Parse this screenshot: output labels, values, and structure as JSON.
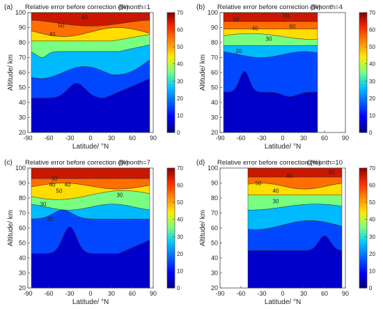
{
  "chart_data": [
    {
      "type": "heatmap",
      "panel_label": "(a)",
      "title": "Relative error before correction (%)",
      "annotation": "@month=1",
      "xlabel": "Latitude/ °N",
      "ylabel": "Altitude/ km",
      "xlim": [
        -90,
        90
      ],
      "ylim": [
        20,
        100
      ],
      "x_ticks": [
        "-90",
        "-60",
        "-30",
        "0",
        "30",
        "60",
        "90"
      ],
      "y_ticks": [
        "20",
        "30",
        "40",
        "50",
        "60",
        "70",
        "80",
        "90",
        "100"
      ],
      "data_extent": [
        -85,
        85
      ],
      "contour_labels": [
        {
          "text": "50",
          "x": -42,
          "y": 91.5
        },
        {
          "text": "40",
          "x": -55,
          "y": 85.5
        },
        {
          "text": "60",
          "x": -8,
          "y": 97
        }
      ],
      "colorbar": {
        "min": 0,
        "max": 70,
        "ticks": [
          "0",
          "10",
          "20",
          "30",
          "40",
          "50",
          "60",
          "70"
        ]
      }
    },
    {
      "type": "heatmap",
      "panel_label": "(b)",
      "title": "Relative error before correction (%)",
      "annotation": "@month=4",
      "xlabel": "Latitude/ °N",
      "ylabel": "Altitude/ km",
      "xlim": [
        -90,
        90
      ],
      "ylim": [
        20,
        100
      ],
      "x_ticks": [
        "-90",
        "-60",
        "-30",
        "0",
        "30",
        "60",
        "90"
      ],
      "y_ticks": [
        "20",
        "30",
        "40",
        "50",
        "60",
        "70",
        "80",
        "90",
        "100"
      ],
      "data_extent": [
        -85,
        50
      ],
      "contour_labels": [
        {
          "text": "60",
          "x": 5,
          "y": 98
        },
        {
          "text": "50",
          "x": -67,
          "y": 95.5
        },
        {
          "text": "40",
          "x": -40,
          "y": 89.5
        },
        {
          "text": "30",
          "x": -20,
          "y": 82.5
        },
        {
          "text": "20",
          "x": -63,
          "y": 74.5
        },
        {
          "text": "60",
          "x": 14,
          "y": 91
        }
      ],
      "colorbar": {
        "min": 0,
        "max": 70,
        "ticks": [
          "0",
          "10",
          "20",
          "30",
          "40",
          "50",
          "60",
          "70"
        ]
      }
    },
    {
      "type": "heatmap",
      "panel_label": "(c)",
      "title": "Relative error before correction (%)",
      "annotation": "@month=7",
      "xlabel": "Latitude/ °N",
      "ylabel": "Altitude/ km",
      "xlim": [
        -90,
        90
      ],
      "ylim": [
        20,
        100
      ],
      "x_ticks": [
        "-90",
        "-60",
        "-30",
        "0",
        "30",
        "60",
        "90"
      ],
      "y_ticks": [
        "20",
        "30",
        "40",
        "50",
        "60",
        "70",
        "80",
        "90",
        "100"
      ],
      "data_extent": [
        -85,
        85
      ],
      "contour_labels": [
        {
          "text": "30",
          "x": -52,
          "y": 93
        },
        {
          "text": "40",
          "x": -55,
          "y": 89
        },
        {
          "text": "50",
          "x": -45,
          "y": 85
        },
        {
          "text": "40",
          "x": -33,
          "y": 89
        },
        {
          "text": "30",
          "x": -68,
          "y": 76
        },
        {
          "text": "20",
          "x": -58,
          "y": 66
        },
        {
          "text": "30",
          "x": 42,
          "y": 82
        }
      ],
      "colorbar": {
        "min": 0,
        "max": 70,
        "ticks": [
          "0",
          "10",
          "20",
          "30",
          "40",
          "50",
          "60",
          "70"
        ]
      }
    },
    {
      "type": "heatmap",
      "panel_label": "(d)",
      "title": "Relative error before correction (%)",
      "annotation": "@month=10",
      "xlabel": "Latitude/ °N",
      "ylabel": "Altitude/ km",
      "xlim": [
        -90,
        90
      ],
      "ylim": [
        20,
        100
      ],
      "x_ticks": [
        "-90",
        "-60",
        "-30",
        "0",
        "30",
        "60",
        "90"
      ],
      "y_ticks": [
        "20",
        "30",
        "40",
        "50",
        "60",
        "70",
        "80",
        "90",
        "100"
      ],
      "data_extent": [
        -50,
        85
      ],
      "contour_labels": [
        {
          "text": "50",
          "x": 70,
          "y": 97.5
        },
        {
          "text": "50",
          "x": -35,
          "y": 90
        },
        {
          "text": "40",
          "x": -10,
          "y": 85
        },
        {
          "text": "30",
          "x": -10,
          "y": 78
        },
        {
          "text": "60",
          "x": 10,
          "y": 95
        }
      ],
      "colorbar": {
        "min": 0,
        "max": 70,
        "ticks": [
          "0",
          "10",
          "20",
          "30",
          "40",
          "50",
          "60",
          "70"
        ]
      }
    }
  ]
}
